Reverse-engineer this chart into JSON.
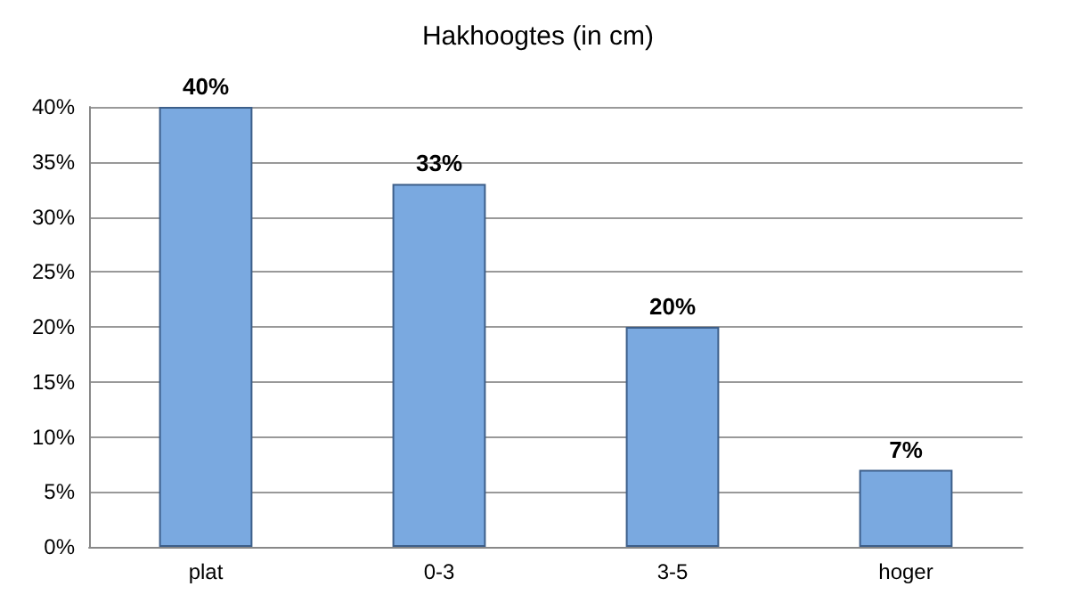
{
  "chart_data": {
    "type": "bar",
    "title": "Hakhoogtes (in cm)",
    "categories": [
      "plat",
      "0-3",
      "3-5",
      "hoger"
    ],
    "values": [
      40,
      33,
      20,
      7
    ],
    "value_labels": [
      "40%",
      "33%",
      "20%",
      "7%"
    ],
    "color": "#7aa9e0",
    "ylim": [
      0,
      40
    ],
    "yticks": [
      {
        "value": 0,
        "label": "0%"
      },
      {
        "value": 5,
        "label": "5%"
      },
      {
        "value": 10,
        "label": "10%"
      },
      {
        "value": 15,
        "label": "15%"
      },
      {
        "value": 20,
        "label": "20%"
      },
      {
        "value": 25,
        "label": "25%"
      },
      {
        "value": 30,
        "label": "30%"
      },
      {
        "value": 35,
        "label": "35%"
      },
      {
        "value": 40,
        "label": "40%"
      }
    ],
    "grid": "y"
  }
}
